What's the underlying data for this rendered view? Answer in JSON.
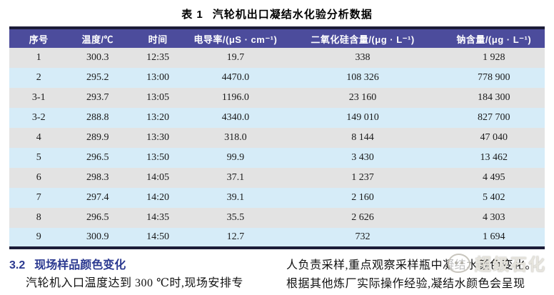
{
  "colors": {
    "header_bg": "#4C4C9C",
    "border_dark": "#1C1C38",
    "row_gray": "#E3E3E3",
    "row_blue": "#D6ECF8",
    "heading_blue": "#2B3990",
    "body_text": "#1A1A1A"
  },
  "table": {
    "title_label": "表 1",
    "title_text": "汽轮机出口凝结水化验分析数据",
    "columns": [
      "序号",
      "温度/℃",
      "时间",
      "电导率/(μS · cm⁻¹)",
      "二氧化硅含量/(μg · L⁻¹)",
      "钠含量/(μg · L⁻¹)"
    ],
    "rows": [
      [
        "1",
        "300.3",
        "12:35",
        "19.7",
        "338",
        "1 928"
      ],
      [
        "2",
        "295.2",
        "13:00",
        "4470.0",
        "108 326",
        "778 900"
      ],
      [
        "3-1",
        "293.7",
        "13:05",
        "1196.0",
        "23 160",
        "184 300"
      ],
      [
        "3-2",
        "288.8",
        "13:20",
        "4340.0",
        "149 010",
        "827 700"
      ],
      [
        "4",
        "289.9",
        "13:30",
        "318.0",
        "8 144",
        "47 040"
      ],
      [
        "5",
        "296.5",
        "13:50",
        "99.9",
        "3 430",
        "13 462"
      ],
      [
        "6",
        "298.3",
        "14:05",
        "37.1",
        "1 237",
        "4 495"
      ],
      [
        "7",
        "297.4",
        "14:20",
        "39.1",
        "2 160",
        "5 402"
      ],
      [
        "8",
        "296.5",
        "14:35",
        "35.5",
        "2 626",
        "4 303"
      ],
      [
        "9",
        "300.9",
        "14:50",
        "12.7",
        "732",
        "1 694"
      ]
    ]
  },
  "section": {
    "heading_number": "3.2",
    "heading_title": "现场样品颜色变化",
    "left_paragraph": "汽轮机入口温度达到 300 ℃时,现场安排专",
    "right_line_1": "人负责采样,重点观察采样瓶中凝结水颜色变化。",
    "right_line_2": "根据其他炼厂实际操作经验,凝结水颜色会呈现"
  },
  "watermark": {
    "text": "超级石化",
    "icon": "mascot-icon"
  }
}
